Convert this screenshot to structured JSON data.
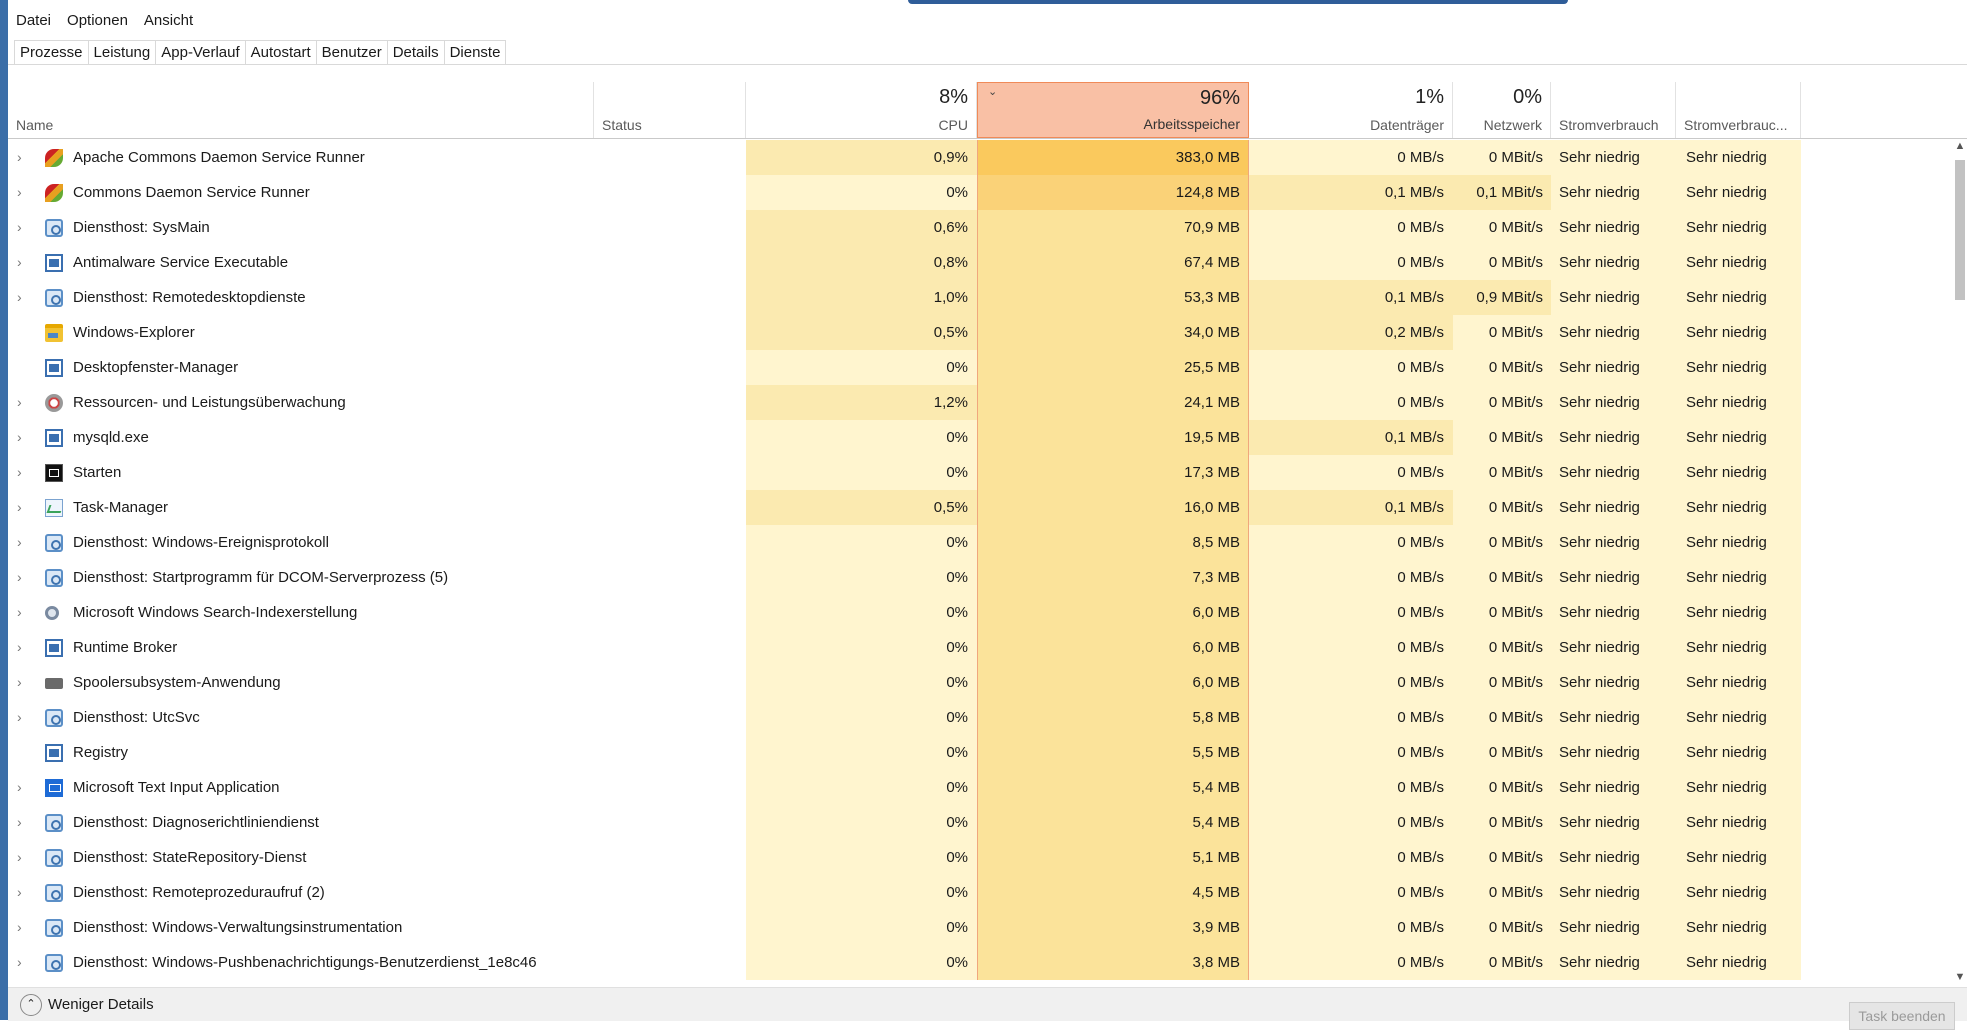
{
  "menu": [
    "Datei",
    "Optionen",
    "Ansicht"
  ],
  "tabs": [
    "Prozesse",
    "Leistung",
    "App-Verlauf",
    "Autostart",
    "Benutzer",
    "Details",
    "Dienste"
  ],
  "header": {
    "name": "Name",
    "status": "Status",
    "cpu_pct": "8%",
    "cpu": "CPU",
    "mem_pct": "96%",
    "mem": "Arbeitsspeicher",
    "disk_pct": "1%",
    "disk": "Datenträger",
    "net_pct": "0%",
    "net": "Netzwerk",
    "power": "Stromverbrauch",
    "power_trend": "Stromverbrauc..."
  },
  "rows": [
    {
      "name": "Apache Commons Daemon Service Runner",
      "icon": "feather-icon",
      "expand": true,
      "cpu": "0,9%",
      "mem": "383,0 MB",
      "disk": "0 MB/s",
      "net": "0 MBit/s",
      "power": "Sehr niedrig",
      "trend": "Sehr niedrig"
    },
    {
      "name": "Commons Daemon Service Runner",
      "icon": "feather-icon",
      "expand": true,
      "cpu": "0%",
      "mem": "124,8 MB",
      "disk": "0,1 MB/s",
      "net": "0,1 MBit/s",
      "power": "Sehr niedrig",
      "trend": "Sehr niedrig"
    },
    {
      "name": "Diensthost: SysMain",
      "icon": "gear-icon",
      "expand": true,
      "cpu": "0,6%",
      "mem": "70,9 MB",
      "disk": "0 MB/s",
      "net": "0 MBit/s",
      "power": "Sehr niedrig",
      "trend": "Sehr niedrig"
    },
    {
      "name": "Antimalware Service Executable",
      "icon": "window-icon",
      "expand": true,
      "cpu": "0,8%",
      "mem": "67,4 MB",
      "disk": "0 MB/s",
      "net": "0 MBit/s",
      "power": "Sehr niedrig",
      "trend": "Sehr niedrig"
    },
    {
      "name": "Diensthost: Remotedesktopdienste",
      "icon": "gear-icon",
      "expand": true,
      "cpu": "1,0%",
      "mem": "53,3 MB",
      "disk": "0,1 MB/s",
      "net": "0,9 MBit/s",
      "power": "Sehr niedrig",
      "trend": "Sehr niedrig"
    },
    {
      "name": "Windows-Explorer",
      "icon": "folder-icon",
      "expand": false,
      "cpu": "0,5%",
      "mem": "34,0 MB",
      "disk": "0,2 MB/s",
      "net": "0 MBit/s",
      "power": "Sehr niedrig",
      "trend": "Sehr niedrig"
    },
    {
      "name": "Desktopfenster-Manager",
      "icon": "window-icon",
      "expand": false,
      "cpu": "0%",
      "mem": "25,5 MB",
      "disk": "0 MB/s",
      "net": "0 MBit/s",
      "power": "Sehr niedrig",
      "trend": "Sehr niedrig"
    },
    {
      "name": "Ressourcen- und Leistungsüberwachung",
      "icon": "monitor-icon",
      "expand": true,
      "cpu": "1,2%",
      "mem": "24,1 MB",
      "disk": "0 MB/s",
      "net": "0 MBit/s",
      "power": "Sehr niedrig",
      "trend": "Sehr niedrig"
    },
    {
      "name": "mysqld.exe",
      "icon": "window-icon",
      "expand": true,
      "cpu": "0%",
      "mem": "19,5 MB",
      "disk": "0,1 MB/s",
      "net": "0 MBit/s",
      "power": "Sehr niedrig",
      "trend": "Sehr niedrig"
    },
    {
      "name": "Starten",
      "icon": "console-icon",
      "expand": true,
      "cpu": "0%",
      "mem": "17,3 MB",
      "disk": "0 MB/s",
      "net": "0 MBit/s",
      "power": "Sehr niedrig",
      "trend": "Sehr niedrig"
    },
    {
      "name": "Task-Manager",
      "icon": "chart-icon",
      "expand": true,
      "cpu": "0,5%",
      "mem": "16,0 MB",
      "disk": "0,1 MB/s",
      "net": "0 MBit/s",
      "power": "Sehr niedrig",
      "trend": "Sehr niedrig"
    },
    {
      "name": "Diensthost: Windows-Ereignisprotokoll",
      "icon": "gear-icon",
      "expand": true,
      "cpu": "0%",
      "mem": "8,5 MB",
      "disk": "0 MB/s",
      "net": "0 MBit/s",
      "power": "Sehr niedrig",
      "trend": "Sehr niedrig"
    },
    {
      "name": "Diensthost: Startprogramm für DCOM-Serverprozess (5)",
      "icon": "gear-icon",
      "expand": true,
      "cpu": "0%",
      "mem": "7,3 MB",
      "disk": "0 MB/s",
      "net": "0 MBit/s",
      "power": "Sehr niedrig",
      "trend": "Sehr niedrig"
    },
    {
      "name": "Microsoft Windows Search-Indexerstellung",
      "icon": "search-icon",
      "expand": true,
      "cpu": "0%",
      "mem": "6,0 MB",
      "disk": "0 MB/s",
      "net": "0 MBit/s",
      "power": "Sehr niedrig",
      "trend": "Sehr niedrig"
    },
    {
      "name": "Runtime Broker",
      "icon": "window-icon",
      "expand": true,
      "cpu": "0%",
      "mem": "6,0 MB",
      "disk": "0 MB/s",
      "net": "0 MBit/s",
      "power": "Sehr niedrig",
      "trend": "Sehr niedrig"
    },
    {
      "name": "Spoolersubsystem-Anwendung",
      "icon": "printer-icon",
      "expand": true,
      "cpu": "0%",
      "mem": "6,0 MB",
      "disk": "0 MB/s",
      "net": "0 MBit/s",
      "power": "Sehr niedrig",
      "trend": "Sehr niedrig"
    },
    {
      "name": "Diensthost: UtcSvc",
      "icon": "gear-icon",
      "expand": true,
      "cpu": "0%",
      "mem": "5,8 MB",
      "disk": "0 MB/s",
      "net": "0 MBit/s",
      "power": "Sehr niedrig",
      "trend": "Sehr niedrig"
    },
    {
      "name": "Registry",
      "icon": "window-icon",
      "expand": false,
      "cpu": "0%",
      "mem": "5,5 MB",
      "disk": "0 MB/s",
      "net": "0 MBit/s",
      "power": "Sehr niedrig",
      "trend": "Sehr niedrig"
    },
    {
      "name": "Microsoft Text Input Application",
      "icon": "blue-app-icon",
      "expand": true,
      "cpu": "0%",
      "mem": "5,4 MB",
      "disk": "0 MB/s",
      "net": "0 MBit/s",
      "power": "Sehr niedrig",
      "trend": "Sehr niedrig"
    },
    {
      "name": "Diensthost: Diagnoserichtliniendienst",
      "icon": "gear-icon",
      "expand": true,
      "cpu": "0%",
      "mem": "5,4 MB",
      "disk": "0 MB/s",
      "net": "0 MBit/s",
      "power": "Sehr niedrig",
      "trend": "Sehr niedrig"
    },
    {
      "name": "Diensthost: StateRepository-Dienst",
      "icon": "gear-icon",
      "expand": true,
      "cpu": "0%",
      "mem": "5,1 MB",
      "disk": "0 MB/s",
      "net": "0 MBit/s",
      "power": "Sehr niedrig",
      "trend": "Sehr niedrig"
    },
    {
      "name": "Diensthost: Remoteprozeduraufruf (2)",
      "icon": "gear-icon",
      "expand": true,
      "cpu": "0%",
      "mem": "4,5 MB",
      "disk": "0 MB/s",
      "net": "0 MBit/s",
      "power": "Sehr niedrig",
      "trend": "Sehr niedrig"
    },
    {
      "name": "Diensthost: Windows-Verwaltungsinstrumentation",
      "icon": "gear-icon",
      "expand": true,
      "cpu": "0%",
      "mem": "3,9 MB",
      "disk": "0 MB/s",
      "net": "0 MBit/s",
      "power": "Sehr niedrig",
      "trend": "Sehr niedrig"
    },
    {
      "name": "Diensthost: Windows-Pushbenachrichtigungs-Benutzerdienst_1e8c46",
      "icon": "gear-icon",
      "expand": true,
      "cpu": "0%",
      "mem": "3,8 MB",
      "disk": "0 MB/s",
      "net": "0 MBit/s",
      "power": "Sehr niedrig",
      "trend": "Sehr niedrig"
    }
  ],
  "footer": {
    "fewer_details": "Weniger Details",
    "end_task": "Task beenden"
  }
}
